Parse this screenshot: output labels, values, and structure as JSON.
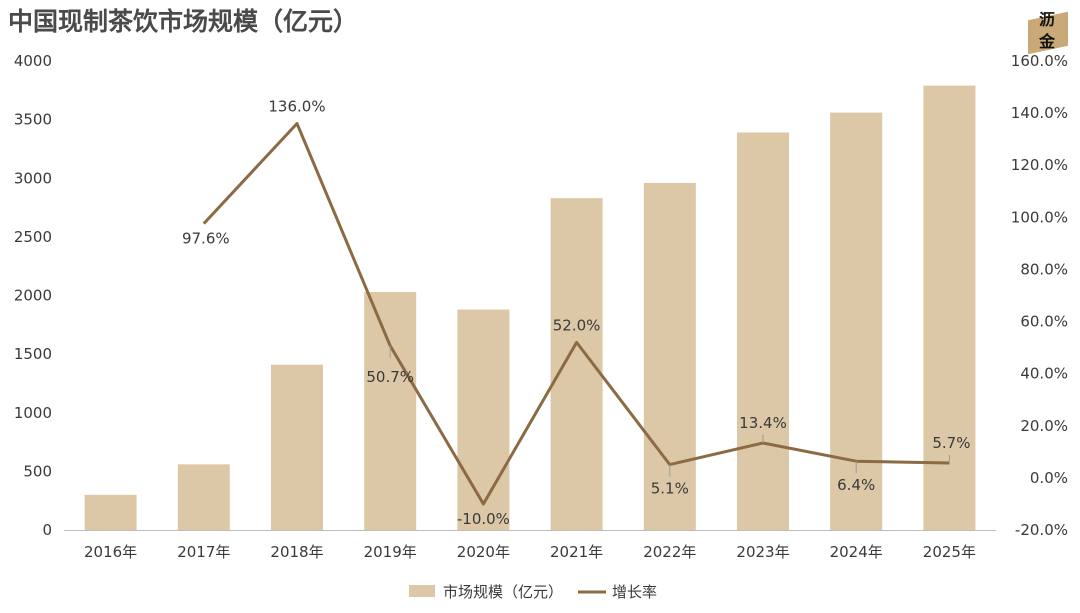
{
  "page": {
    "title": "中国现制茶饮市场规模（亿元）",
    "logo": {
      "line1": "沥",
      "line2": "金"
    }
  },
  "colors": {
    "bar": "#dcc8a6",
    "line": "#8b6a44",
    "axis": "#bdbdbd",
    "text": "#3a3a3a",
    "leader": "#9a9a9a"
  },
  "chart_data": {
    "type": "bar",
    "title": "中国现制茶饮市场规模（亿元）",
    "categories": [
      "2016年",
      "2017年",
      "2018年",
      "2019年",
      "2020年",
      "2021年",
      "2022年",
      "2023年",
      "2024年",
      "2025年"
    ],
    "series": [
      {
        "name": "市场规模（亿元）",
        "type": "bar",
        "axis": "left",
        "values": [
          300,
          560,
          1410,
          2030,
          1880,
          2830,
          2960,
          3390,
          3560,
          3790
        ]
      },
      {
        "name": "增长率",
        "type": "line",
        "axis": "right",
        "values": [
          null,
          97.6,
          136.0,
          50.7,
          -10.0,
          52.0,
          5.1,
          13.4,
          6.4,
          5.7
        ],
        "labels": [
          "",
          "97.6%",
          "136.0%",
          "50.7%",
          "-10.0%",
          "52.0%",
          "5.1%",
          "13.4%",
          "6.4%",
          "5.7%"
        ]
      }
    ],
    "y_left": {
      "min": 0,
      "max": 4000,
      "ticks": [
        "0",
        "500",
        "1000",
        "1500",
        "2000",
        "2500",
        "3000",
        "3500",
        "4000"
      ]
    },
    "y_right": {
      "min": -20,
      "max": 160,
      "ticks": [
        "-20.0%",
        "0.0%",
        "20.0%",
        "40.0%",
        "60.0%",
        "80.0%",
        "100.0%",
        "120.0%",
        "140.0%",
        "160.0%"
      ]
    },
    "grid": false,
    "legend": "bottom-center"
  }
}
